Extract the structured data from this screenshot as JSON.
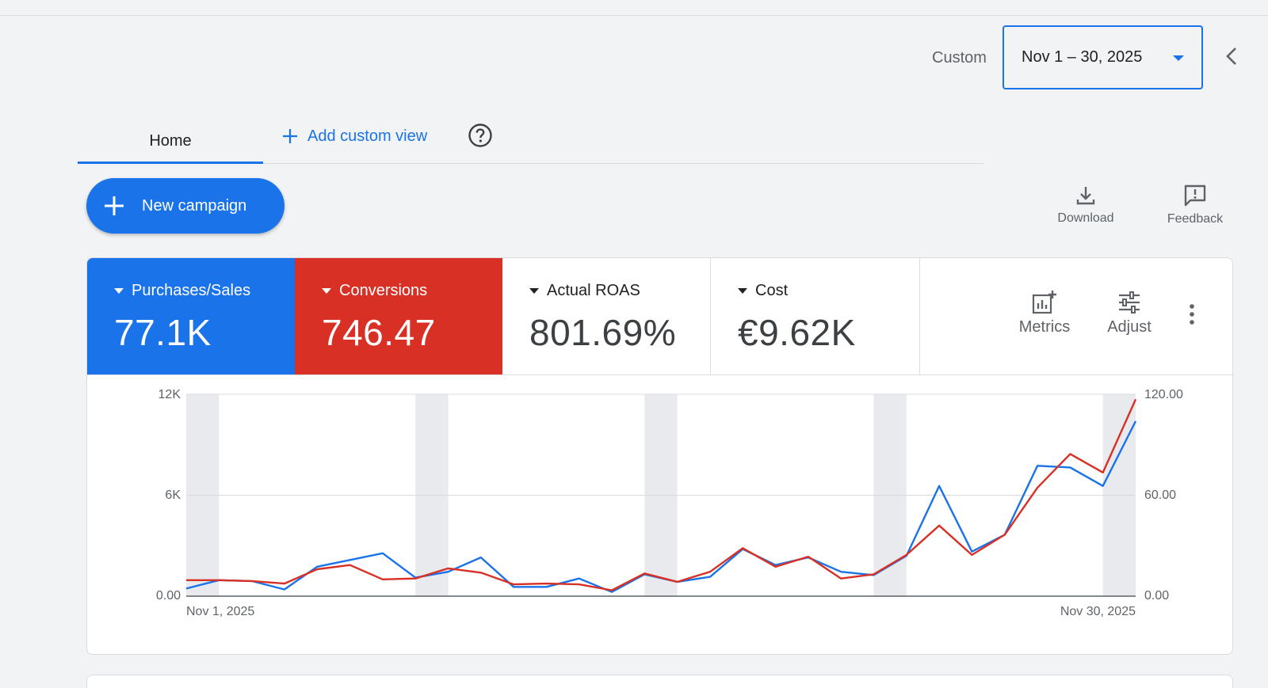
{
  "header": {
    "date_label": "Custom",
    "date_value": "Nov 1 – 30, 2025"
  },
  "tabs": {
    "home": "Home",
    "add_custom_view": "Add custom view"
  },
  "actions": {
    "new_campaign": "New campaign",
    "download": "Download",
    "feedback": "Feedback"
  },
  "metrics": [
    {
      "label": "Purchases/Sales",
      "value": "77.1K",
      "color": "#1a73e8"
    },
    {
      "label": "Conversions",
      "value": "746.47",
      "color": "#d93025"
    },
    {
      "label": "Actual ROAS",
      "value": "801.69%"
    },
    {
      "label": "Cost",
      "value": "€9.62K"
    }
  ],
  "card_tools": {
    "metrics": "Metrics",
    "adjust": "Adjust"
  },
  "chart_data": {
    "type": "line",
    "x_start_label": "Nov 1, 2025",
    "x_end_label": "Nov 30, 2025",
    "left_ticks": [
      "0.00",
      "6K",
      "12K"
    ],
    "right_ticks": [
      "0.00",
      "60.00",
      "120.00"
    ],
    "left_ylim": [
      0,
      12000
    ],
    "right_ylim": [
      0,
      120
    ],
    "grid": true,
    "weekend_days": [
      1,
      8,
      15,
      22,
      29
    ],
    "series": [
      {
        "axis": "left",
        "color": "#1a73e8",
        "values": [
          450,
          950,
          900,
          400,
          1750,
          2150,
          2550,
          1100,
          1450,
          2300,
          550,
          550,
          1050,
          250,
          1300,
          850,
          1150,
          2800,
          1850,
          2300,
          1450,
          1250,
          2400,
          6550,
          2650,
          3650,
          7750,
          7650,
          6550,
          10400
        ]
      },
      {
        "axis": "right",
        "color": "#d93025",
        "values": [
          9.5,
          9.5,
          9,
          7.5,
          16,
          18.5,
          10,
          10.5,
          16.5,
          14,
          7,
          7.5,
          7,
          3.5,
          13.5,
          8.5,
          14.5,
          28.5,
          17.5,
          23.5,
          10.5,
          13,
          24.5,
          42,
          24.5,
          36.5,
          64.5,
          84.5,
          73.5,
          117
        ]
      }
    ]
  }
}
